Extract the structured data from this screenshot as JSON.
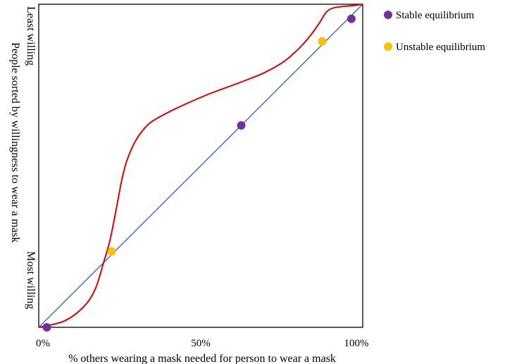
{
  "chart_data": {
    "type": "line",
    "title": "",
    "xlabel": "% others wearing a mask needed for person to wear a mask",
    "ylabel": "People sorted by willingness to wear a mask",
    "ylabel_top": "Least willing",
    "ylabel_bottom": "Most willing",
    "xlim": [
      0,
      100
    ],
    "ylim": [
      0,
      100
    ],
    "x_ticks": [
      {
        "value": 0,
        "label": "0%"
      },
      {
        "value": 50,
        "label": "50%"
      },
      {
        "value": 100,
        "label": "100%"
      }
    ],
    "grid": false,
    "legend_position": "right",
    "series": [
      {
        "kind": "reference-line",
        "color": "#4472c4",
        "x": [
          0,
          100
        ],
        "y": [
          0,
          100
        ]
      },
      {
        "kind": "response-curve",
        "color": "#e00000",
        "x": [
          0,
          8,
          14,
          17.5,
          20,
          22,
          24,
          25.5,
          27,
          29,
          31,
          34,
          38,
          44,
          52,
          60,
          64,
          70,
          76,
          81,
          84,
          86.5,
          88,
          89,
          90,
          91.5,
          93,
          96,
          98,
          100
        ],
        "y": [
          0,
          2,
          6.5,
          12,
          20,
          27,
          37,
          45,
          51,
          56,
          59.5,
          63,
          65.5,
          68.5,
          72,
          75,
          76.5,
          79,
          82.5,
          87,
          90.5,
          94,
          96.5,
          97.8,
          98.5,
          99,
          99.2,
          99.5,
          99.7,
          100
        ]
      }
    ],
    "points": [
      {
        "type": "stable",
        "x": 2.5,
        "y": 0,
        "color": "#7030a0"
      },
      {
        "type": "unstable",
        "x": 22.5,
        "y": 23.5,
        "color": "#ffc000"
      },
      {
        "type": "stable",
        "x": 62.5,
        "y": 62.5,
        "color": "#7030a0"
      },
      {
        "type": "unstable",
        "x": 87.5,
        "y": 88.5,
        "color": "#ffc000"
      },
      {
        "type": "stable",
        "x": 96.5,
        "y": 95.5,
        "color": "#7030a0"
      }
    ],
    "legend": [
      {
        "label": "Stable equilibrium",
        "color": "#7030a0"
      },
      {
        "label": "Unstable equilibrium",
        "color": "#ffc000"
      }
    ]
  }
}
